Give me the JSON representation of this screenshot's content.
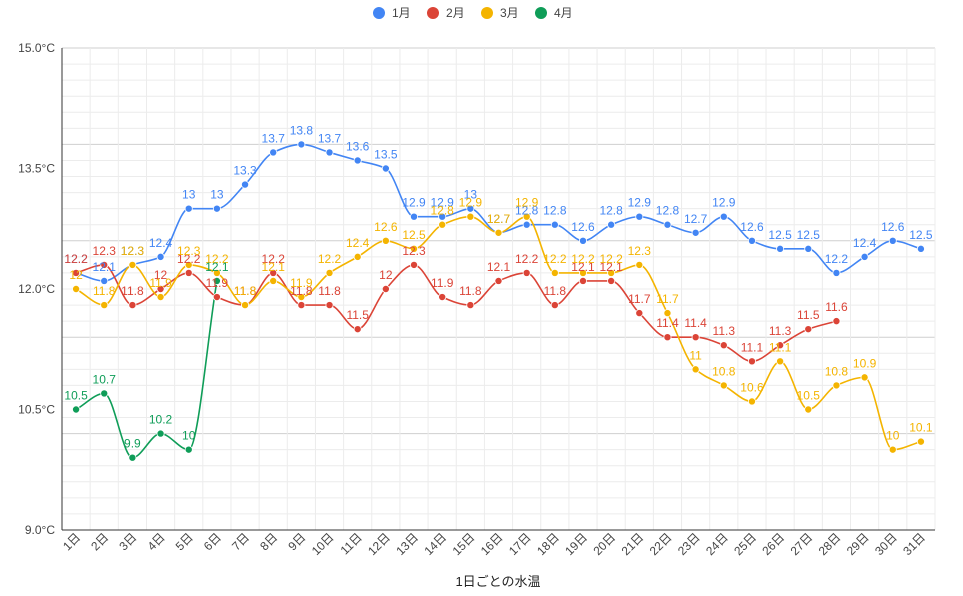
{
  "chart_data": {
    "type": "line",
    "title": "",
    "xlabel": "1日ごとの水温",
    "ylabel": "",
    "ylim": [
      9.0,
      15.0
    ],
    "yticks": [
      "9.0°C",
      "10.5°C",
      "12.0°C",
      "13.5°C",
      "15.0°C"
    ],
    "ytick_values": [
      9.0,
      10.5,
      12.0,
      13.5,
      15.0
    ],
    "grid": true,
    "legend_position": "top-center",
    "categories": [
      "1日",
      "2日",
      "3日",
      "4日",
      "5日",
      "6日",
      "7日",
      "8日",
      "9日",
      "10日",
      "11日",
      "12日",
      "13日",
      "14日",
      "15日",
      "16日",
      "17日",
      "18日",
      "19日",
      "20日",
      "21日",
      "22日",
      "23日",
      "24日",
      "25日",
      "26日",
      "27日",
      "28日",
      "29日",
      "30日",
      "31日"
    ],
    "series": [
      {
        "name": "1月",
        "color": "#4285f4",
        "values": [
          12.2,
          12.1,
          12.3,
          12.4,
          13,
          13,
          13.3,
          13.7,
          13.8,
          13.7,
          13.6,
          13.5,
          12.9,
          12.9,
          13,
          12.7,
          12.8,
          12.8,
          12.6,
          12.8,
          12.9,
          12.8,
          12.7,
          12.9,
          12.6,
          12.5,
          12.5,
          12.2,
          12.4,
          12.6,
          12.5
        ]
      },
      {
        "name": "2月",
        "color": "#db4437",
        "values": [
          12.2,
          12.3,
          11.8,
          12,
          12.2,
          11.9,
          11.8,
          12.2,
          11.8,
          11.8,
          11.5,
          12,
          12.3,
          11.9,
          11.8,
          12.1,
          12.2,
          11.8,
          12.1,
          12.1,
          11.7,
          11.4,
          11.4,
          11.3,
          11.1,
          11.3,
          11.5,
          11.6,
          null,
          null,
          null
        ]
      },
      {
        "name": "3月",
        "color": "#f4b400",
        "values": [
          12,
          11.8,
          12.3,
          11.9,
          12.3,
          12.2,
          11.8,
          12.1,
          11.9,
          12.2,
          12.4,
          12.6,
          12.5,
          12.8,
          12.9,
          12.7,
          12.9,
          12.2,
          12.2,
          12.2,
          12.3,
          11.7,
          11,
          10.8,
          10.6,
          11.1,
          10.5,
          10.8,
          10.9,
          10,
          10.1
        ]
      },
      {
        "name": "4月",
        "color": "#0f9d58",
        "values": [
          10.5,
          10.7,
          9.9,
          10.2,
          10,
          12.1,
          null,
          null,
          null,
          null,
          null,
          null,
          null,
          null,
          null,
          null,
          null,
          null,
          null,
          null,
          null,
          null,
          null,
          null,
          null,
          null,
          null,
          null,
          null,
          null,
          null
        ]
      }
    ]
  }
}
